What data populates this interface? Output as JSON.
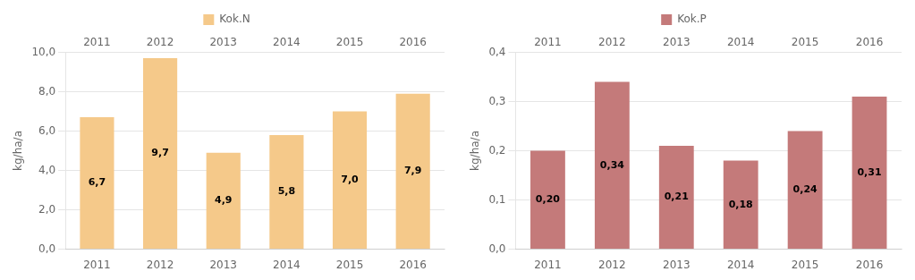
{
  "chart_data": [
    {
      "type": "bar",
      "categories": [
        "2011",
        "2012",
        "2013",
        "2014",
        "2015",
        "2016"
      ],
      "x2_categories": [
        "2011",
        "2012",
        "2013",
        "2014",
        "2015",
        "2016"
      ],
      "ylabel": "kg/ha/a",
      "series": [
        {
          "name": "Kok.N",
          "color": "#F5C98A",
          "values": [
            6.7,
            9.7,
            4.9,
            5.8,
            7.0,
            7.9
          ],
          "value_labels": [
            "6,7",
            "9,7",
            "4,9",
            "5,8",
            "7,0",
            "7,9"
          ]
        }
      ],
      "ylim": [
        0,
        10.0
      ],
      "yticks": [
        {
          "value": 0.0,
          "label": "0,0"
        },
        {
          "value": 2.0,
          "label": "2,0"
        },
        {
          "value": 4.0,
          "label": "4,0"
        },
        {
          "value": 6.0,
          "label": "6,0"
        },
        {
          "value": 8.0,
          "label": "8,0"
        },
        {
          "value": 10.0,
          "label": "10,0"
        }
      ],
      "grid": true,
      "legend": "top",
      "data_labels": true
    },
    {
      "type": "bar",
      "categories": [
        "2011",
        "2012",
        "2013",
        "2014",
        "2015",
        "2016"
      ],
      "x2_categories": [
        "2011",
        "2012",
        "2013",
        "2014",
        "2015",
        "2016"
      ],
      "ylabel": "kg/ha/a",
      "series": [
        {
          "name": "Kok.P",
          "color": "#C47A7A",
          "values": [
            0.2,
            0.34,
            0.21,
            0.18,
            0.24,
            0.31
          ],
          "value_labels": [
            "0,20",
            "0,34",
            "0,21",
            "0,18",
            "0,24",
            "0,31"
          ]
        }
      ],
      "ylim": [
        0,
        0.4
      ],
      "yticks": [
        {
          "value": 0.0,
          "label": "0,0"
        },
        {
          "value": 0.1,
          "label": "0,1"
        },
        {
          "value": 0.2,
          "label": "0,2"
        },
        {
          "value": 0.3,
          "label": "0,3"
        },
        {
          "value": 0.4,
          "label": "0,4"
        }
      ],
      "grid": true,
      "legend": "top",
      "data_labels": true
    }
  ]
}
